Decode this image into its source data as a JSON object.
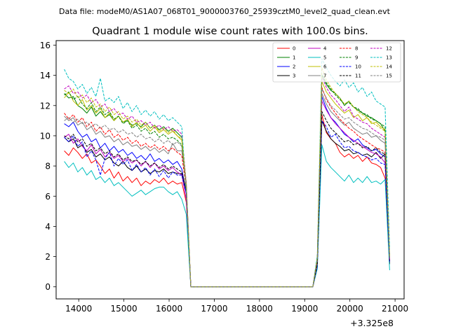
{
  "header": {
    "data_file_label": "Data file: modeM0/AS1A07_068T01_9000003760_25939cztM0_level2_quad_clean.evt"
  },
  "chart_data": {
    "type": "line",
    "title": "Quadrant 1 module wise count rates with 100.0s bins.",
    "xlabel": "",
    "ylabel": "",
    "x_offset_label": "+3.325e8",
    "xlim": [
      13500,
      21200
    ],
    "ylim": [
      -0.8,
      16.3
    ],
    "xticks": [
      14000,
      15000,
      16000,
      17000,
      18000,
      19000,
      20000,
      21000
    ],
    "xtick_labels": [
      "14000",
      "15000",
      "16000",
      "17000",
      "18000",
      "19000",
      "20000",
      "21000"
    ],
    "yticks": [
      0,
      2,
      4,
      6,
      8,
      10,
      12,
      14,
      16
    ],
    "ytick_labels": [
      "0",
      "2",
      "4",
      "6",
      "8",
      "10",
      "12",
      "14",
      "16"
    ],
    "grid": false,
    "legend_location": "top-right",
    "segments": [
      {
        "x_start": 13680,
        "x_end": 16580,
        "x_step": 100
      },
      {
        "x_start": 19180,
        "x_end": 20880,
        "x_step": 100
      }
    ],
    "series": [
      {
        "name": "0",
        "color": "#ff0000",
        "dash": "solid",
        "seg1": [
          9.0,
          8.7,
          9.2,
          8.9,
          8.5,
          8.8,
          8.2,
          8.4,
          8.0,
          7.5,
          7.8,
          7.2,
          7.6,
          7.0,
          7.3,
          6.9,
          7.2,
          6.7,
          7.0,
          6.8,
          7.1,
          6.9,
          7.2,
          6.8,
          7.0,
          6.8,
          6.9,
          5.6,
          0.0,
          0.0
        ],
        "seg2": [
          0.0,
          1.5,
          11.4,
          10.2,
          9.8,
          9.5,
          8.9,
          8.6,
          8.8,
          8.5,
          8.7,
          8.3,
          8.6,
          8.2,
          8.1,
          7.9,
          7.2,
          1.6
        ]
      },
      {
        "name": "1",
        "color": "#008000",
        "dash": "solid",
        "seg1": [
          12.8,
          12.5,
          12.6,
          12.0,
          11.8,
          11.5,
          11.9,
          11.3,
          11.6,
          11.2,
          11.4,
          11.0,
          11.3,
          10.9,
          11.0,
          10.7,
          10.8,
          10.6,
          10.9,
          10.5,
          10.7,
          10.4,
          10.6,
          10.3,
          10.5,
          10.2,
          9.9,
          6.6,
          0.0,
          0.0
        ],
        "seg2": [
          0.0,
          1.8,
          14.0,
          13.4,
          13.0,
          12.8,
          12.5,
          12.0,
          12.3,
          11.9,
          11.7,
          11.5,
          11.3,
          11.2,
          11.0,
          10.8,
          10.3,
          1.7
        ]
      },
      {
        "name": "2",
        "color": "#0000ff",
        "dash": "solid",
        "seg1": [
          10.8,
          10.6,
          10.9,
          10.3,
          9.9,
          10.1,
          9.6,
          9.8,
          9.2,
          9.5,
          9.0,
          9.3,
          8.9,
          9.1,
          8.7,
          8.9,
          8.5,
          8.7,
          8.4,
          8.8,
          8.3,
          8.5,
          8.2,
          8.4,
          8.1,
          8.3,
          7.8,
          6.2,
          0.0,
          0.0
        ],
        "seg2": [
          0.0,
          1.4,
          12.6,
          11.8,
          11.2,
          10.9,
          10.5,
          10.1,
          9.9,
          9.6,
          9.8,
          9.4,
          9.2,
          9.0,
          9.1,
          8.8,
          8.6,
          1.8
        ]
      },
      {
        "name": "3",
        "color": "#000000",
        "dash": "solid",
        "seg1": [
          9.9,
          9.6,
          9.8,
          9.2,
          9.4,
          8.9,
          9.1,
          8.6,
          8.8,
          8.4,
          8.6,
          8.2,
          8.0,
          8.3,
          7.9,
          7.7,
          8.0,
          7.6,
          7.8,
          7.5,
          7.7,
          7.6,
          7.8,
          7.5,
          7.6,
          7.5,
          7.5,
          6.3,
          0.0,
          0.0
        ],
        "seg2": [
          0.0,
          1.6,
          11.0,
          10.3,
          9.8,
          9.5,
          9.3,
          9.0,
          9.1,
          8.8,
          8.9,
          8.7,
          8.8,
          8.6,
          8.9,
          8.5,
          8.8,
          1.5
        ]
      },
      {
        "name": "4",
        "color": "#bf00bf",
        "dash": "solid",
        "seg1": [
          9.9,
          10.1,
          9.5,
          9.8,
          9.3,
          9.0,
          9.4,
          8.8,
          9.1,
          8.6,
          8.9,
          8.5,
          8.7,
          8.3,
          8.5,
          8.2,
          8.4,
          8.0,
          8.3,
          7.9,
          8.2,
          7.8,
          8.0,
          7.7,
          7.9,
          7.6,
          7.4,
          5.8,
          0.0,
          0.0
        ],
        "seg2": [
          0.0,
          1.5,
          12.3,
          11.7,
          11.2,
          10.8,
          10.5,
          10.2,
          9.9,
          9.7,
          9.5,
          9.3,
          9.1,
          8.9,
          8.8,
          8.6,
          8.2,
          1.7
        ]
      },
      {
        "name": "5",
        "color": "#00bfbf",
        "dash": "solid",
        "seg1": [
          8.3,
          7.9,
          8.2,
          7.6,
          7.9,
          7.4,
          7.7,
          7.1,
          7.3,
          6.9,
          7.2,
          6.7,
          6.9,
          6.6,
          6.3,
          6.0,
          6.2,
          6.4,
          6.1,
          6.3,
          6.5,
          6.6,
          6.6,
          6.3,
          6.1,
          6.3,
          5.8,
          4.8,
          0.0,
          0.0
        ],
        "seg2": [
          0.0,
          1.2,
          9.4,
          8.3,
          7.9,
          7.6,
          7.3,
          7.0,
          7.4,
          6.9,
          7.2,
          6.9,
          7.3,
          6.9,
          7.0,
          6.8,
          7.1,
          1.1
        ]
      },
      {
        "name": "6",
        "color": "#bfbf00",
        "dash": "solid",
        "seg1": [
          12.5,
          12.9,
          12.3,
          12.0,
          12.4,
          11.7,
          12.0,
          11.5,
          11.8,
          11.2,
          11.5,
          11.0,
          11.3,
          10.9,
          11.1,
          10.6,
          10.9,
          10.5,
          10.7,
          10.3,
          10.6,
          10.2,
          10.4,
          10.1,
          10.3,
          10.0,
          9.7,
          6.8,
          0.0,
          0.0
        ],
        "seg2": [
          0.0,
          1.9,
          13.6,
          12.9,
          12.5,
          12.1,
          11.8,
          11.5,
          11.7,
          11.2,
          11.4,
          11.0,
          11.2,
          10.8,
          10.9,
          10.6,
          10.4,
          1.9
        ]
      },
      {
        "name": "7",
        "color": "#808080",
        "dash": "solid",
        "seg1": [
          11.3,
          11.0,
          11.2,
          10.7,
          10.9,
          10.4,
          10.6,
          10.1,
          10.3,
          9.9,
          10.0,
          9.6,
          9.8,
          9.4,
          9.6,
          9.3,
          9.4,
          9.1,
          9.3,
          9.0,
          9.2,
          8.9,
          9.1,
          8.8,
          9.5,
          9.0,
          9.0,
          6.9,
          0.0,
          0.0
        ],
        "seg2": [
          0.0,
          1.7,
          12.8,
          12.1,
          11.6,
          11.3,
          11.0,
          10.7,
          10.9,
          10.5,
          10.3,
          10.1,
          10.2,
          9.9,
          10.0,
          9.7,
          9.5,
          1.8
        ]
      },
      {
        "name": "8",
        "color": "#ff0000",
        "dash": "dashed",
        "seg1": [
          11.5,
          11.1,
          11.4,
          10.9,
          11.2,
          10.6,
          10.9,
          10.3,
          10.6,
          10.1,
          10.4,
          9.9,
          10.1,
          9.7,
          9.9,
          9.5,
          9.7,
          9.3,
          9.5,
          9.2,
          9.4,
          9.1,
          9.3,
          9.0,
          9.2,
          8.9,
          8.7,
          6.5,
          0.0,
          0.0
        ],
        "seg2": [
          0.0,
          1.6,
          13.2,
          12.4,
          11.9,
          11.5,
          11.1,
          10.8,
          10.5,
          10.3,
          10.0,
          9.8,
          9.6,
          9.4,
          9.2,
          9.1,
          8.9,
          1.8
        ]
      },
      {
        "name": "9",
        "color": "#008000",
        "dash": "dashed",
        "seg1": [
          12.7,
          12.9,
          12.4,
          12.6,
          12.1,
          11.8,
          12.2,
          11.6,
          11.9,
          11.4,
          11.6,
          11.1,
          11.3,
          10.8,
          11.0,
          10.5,
          10.7,
          10.3,
          10.5,
          10.1,
          10.3,
          9.9,
          10.1,
          9.8,
          9.9,
          9.7,
          9.4,
          6.6,
          0.0,
          0.0
        ],
        "seg2": [
          0.0,
          1.9,
          14.1,
          13.5,
          13.1,
          12.7,
          12.4,
          12.1,
          12.2,
          11.9,
          11.8,
          11.5,
          11.4,
          11.1,
          11.0,
          10.8,
          10.6,
          2.0
        ]
      },
      {
        "name": "10",
        "color": "#0000ff",
        "dash": "dashed",
        "seg1": [
          9.9,
          9.6,
          10.0,
          9.3,
          9.6,
          8.6,
          9.0,
          8.4,
          7.4,
          8.5,
          8.9,
          8.0,
          8.5,
          8.1,
          8.4,
          7.7,
          8.1,
          7.6,
          7.9,
          7.4,
          7.8,
          7.3,
          7.7,
          7.2,
          7.6,
          7.4,
          7.4,
          6.2,
          0.0,
          0.0
        ],
        "seg2": [
          0.0,
          1.4,
          11.0,
          10.6,
          9.9,
          10.1,
          9.6,
          9.2,
          9.3,
          9.0,
          8.9,
          8.7,
          8.6,
          8.4,
          8.5,
          8.2,
          8.1,
          1.6
        ]
      },
      {
        "name": "11",
        "color": "#000000",
        "dash": "dashed",
        "seg1": [
          10.0,
          9.8,
          10.1,
          9.6,
          9.8,
          9.3,
          9.5,
          9.0,
          9.2,
          8.8,
          9.0,
          8.6,
          8.8,
          8.4,
          8.6,
          8.3,
          8.4,
          8.1,
          8.3,
          8.0,
          8.2,
          7.9,
          8.1,
          7.8,
          8.0,
          7.8,
          7.6,
          6.4,
          0.0,
          0.0
        ],
        "seg2": [
          0.0,
          1.5,
          11.6,
          11.0,
          10.5,
          10.2,
          9.9,
          9.6,
          9.7,
          9.4,
          9.5,
          9.2,
          9.3,
          9.0,
          9.2,
          8.9,
          8.8,
          1.7
        ]
      },
      {
        "name": "12",
        "color": "#bf00bf",
        "dash": "dashed",
        "seg1": [
          13.1,
          13.3,
          12.8,
          12.9,
          12.5,
          12.7,
          12.2,
          12.4,
          11.9,
          12.1,
          11.6,
          11.8,
          11.4,
          11.5,
          11.1,
          11.3,
          10.9,
          11.0,
          10.7,
          10.9,
          10.5,
          10.7,
          10.4,
          10.6,
          10.3,
          10.4,
          10.1,
          6.9,
          0.0,
          0.0
        ],
        "seg2": [
          0.0,
          2.0,
          13.9,
          13.2,
          12.7,
          12.4,
          12.0,
          11.6,
          11.9,
          11.3,
          11.1,
          10.9,
          10.8,
          10.5,
          10.3,
          10.1,
          9.9,
          1.8
        ]
      },
      {
        "name": "13",
        "color": "#00bfbf",
        "dash": "dashed",
        "seg1": [
          14.4,
          13.8,
          13.6,
          13.1,
          13.4,
          12.8,
          13.2,
          12.6,
          13.8,
          12.3,
          12.5,
          12.2,
          12.6,
          11.8,
          12.2,
          11.6,
          12.0,
          11.4,
          11.7,
          11.3,
          11.6,
          11.1,
          11.4,
          11.0,
          11.2,
          10.9,
          10.6,
          6.3,
          0.0,
          0.0
        ],
        "seg2": [
          0.0,
          2.1,
          15.1,
          14.5,
          14.0,
          13.6,
          13.3,
          13.7,
          13.2,
          13.5,
          12.9,
          13.2,
          12.6,
          12.9,
          12.3,
          12.1,
          11.9,
          2.5
        ]
      },
      {
        "name": "14",
        "color": "#bfbf00",
        "dash": "dashed",
        "seg1": [
          13.0,
          12.8,
          13.1,
          12.5,
          12.7,
          12.2,
          12.5,
          11.9,
          12.1,
          11.6,
          11.9,
          11.4,
          11.6,
          11.1,
          11.3,
          10.9,
          11.1,
          10.7,
          10.9,
          10.5,
          10.7,
          10.3,
          10.5,
          10.2,
          10.4,
          10.0,
          9.8,
          6.8,
          0.0,
          0.0
        ],
        "seg2": [
          0.0,
          1.9,
          14.5,
          13.7,
          13.2,
          12.8,
          12.5,
          12.1,
          12.3,
          11.9,
          11.6,
          11.4,
          11.2,
          10.9,
          10.7,
          10.5,
          10.3,
          1.9
        ]
      },
      {
        "name": "15",
        "color": "#808080",
        "dash": "dashed",
        "seg1": [
          11.0,
          11.2,
          10.9,
          11.1,
          10.8,
          10.9,
          10.6,
          10.8,
          10.5,
          10.7,
          10.4,
          10.5,
          10.2,
          10.4,
          10.1,
          10.2,
          9.9,
          10.1,
          9.8,
          9.9,
          9.6,
          9.8,
          9.5,
          9.7,
          9.4,
          9.6,
          9.3,
          6.7,
          0.0,
          0.0
        ],
        "seg2": [
          0.0,
          1.8,
          13.1,
          12.5,
          12.0,
          11.7,
          11.4,
          11.1,
          11.2,
          10.9,
          10.7,
          10.5,
          10.4,
          10.2,
          10.0,
          9.9,
          9.7,
          1.9
        ]
      }
    ]
  }
}
